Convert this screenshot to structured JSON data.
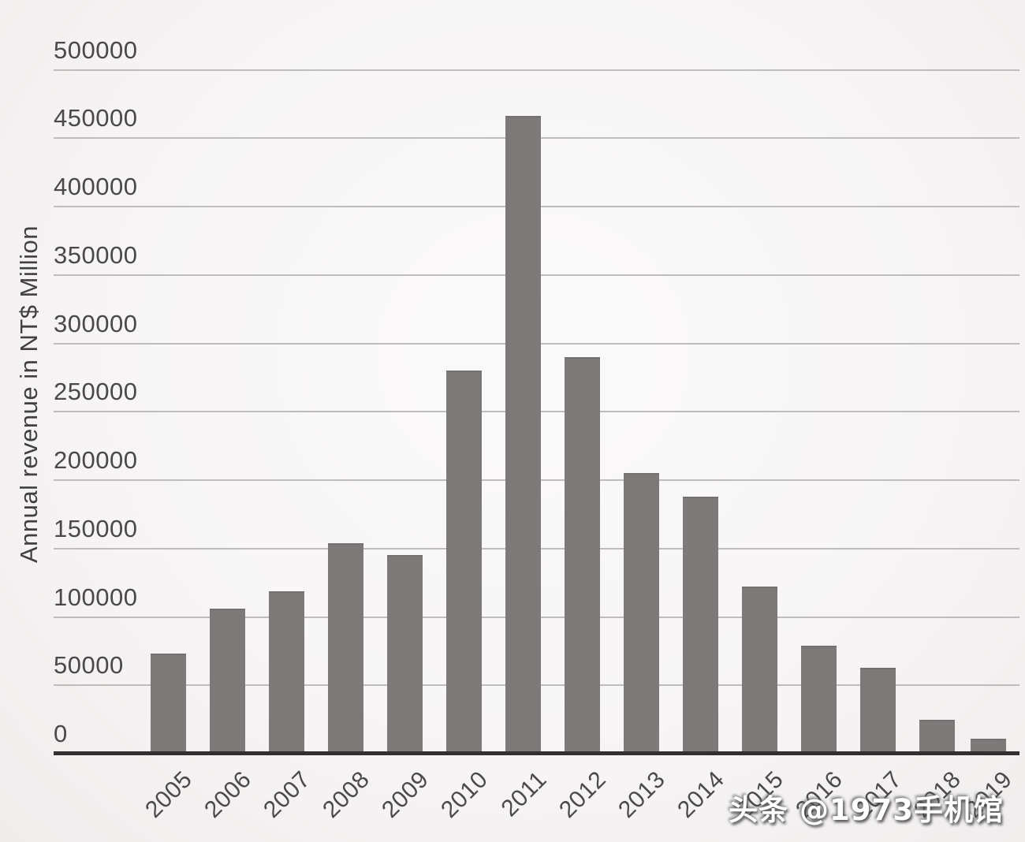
{
  "chart_data": {
    "type": "bar",
    "title": "",
    "xlabel": "",
    "ylabel": "Annual revenue in NT$ Million",
    "categories": [
      "2005",
      "2006",
      "2007",
      "2008",
      "2009",
      "2010",
      "2011",
      "2012",
      "2013",
      "2014",
      "2015",
      "2016",
      "2017",
      "2018",
      "2019"
    ],
    "values": [
      73000,
      106000,
      119000,
      154000,
      145000,
      280000,
      466000,
      290000,
      205000,
      188000,
      122000,
      79000,
      63000,
      25000,
      11000
    ],
    "series": [
      {
        "name": "Annual revenue in NT$ Million",
        "values": [
          73000,
          106000,
          119000,
          154000,
          145000,
          280000,
          466000,
          290000,
          205000,
          188000,
          122000,
          79000,
          63000,
          25000,
          11000
        ]
      }
    ],
    "ylim": [
      0,
      500000
    ],
    "y_tick_interval": 50000,
    "y_tick_labels": [
      "0",
      "50000",
      "100000",
      "150000",
      "200000",
      "250000",
      "300000",
      "350000",
      "400000",
      "450000",
      "500000"
    ],
    "x_label_rotation_deg": -45,
    "grid": true,
    "legend_position": "none",
    "bar_color": "#7d7979"
  },
  "watermark": {
    "text": "头条 @1973手机馆"
  },
  "colors": {
    "background": "#f7f5f5",
    "bar": "#7d7979",
    "gridline": "#bfbcbc",
    "axis_line": "#332f30",
    "tick_label": "#4a4848",
    "axis_title": "#413f3f",
    "watermark_text": "#ffffff"
  }
}
